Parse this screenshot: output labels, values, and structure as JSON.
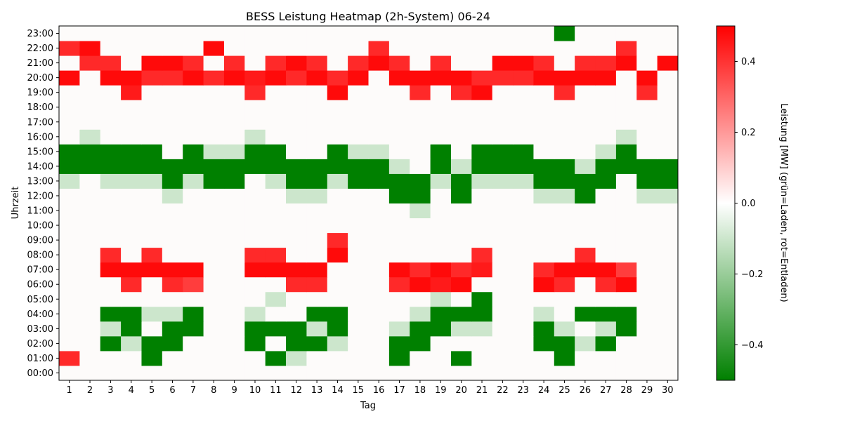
{
  "chart_data": {
    "type": "heatmap",
    "title": "BESS Leistung Heatmap (2h-System) 06-24",
    "xlabel": "Tag",
    "ylabel": "Uhrzeit",
    "x": [
      1,
      2,
      3,
      4,
      5,
      6,
      7,
      8,
      9,
      10,
      11,
      12,
      13,
      14,
      15,
      16,
      17,
      18,
      19,
      20,
      21,
      22,
      23,
      24,
      25,
      26,
      27,
      28,
      29,
      30
    ],
    "y": [
      "00:00",
      "01:00",
      "02:00",
      "03:00",
      "04:00",
      "05:00",
      "06:00",
      "07:00",
      "08:00",
      "09:00",
      "10:00",
      "11:00",
      "12:00",
      "13:00",
      "14:00",
      "15:00",
      "16:00",
      "17:00",
      "18:00",
      "19:00",
      "20:00",
      "21:00",
      "22:00",
      "23:00"
    ],
    "zlim": [
      -0.5,
      0.5
    ],
    "colorbar": {
      "label": "Leistung [MW] (grün=Laden, rot=Entladen)",
      "ticks": [
        -0.4,
        -0.2,
        0.0,
        0.2,
        0.4
      ],
      "tick_labels": [
        "−0.4",
        "−0.2",
        "0.0",
        "0.2",
        "0.4"
      ]
    },
    "colors": {
      "negative": "#008000",
      "zero": "#ffffff",
      "positive": "#ff0000"
    },
    "values": [
      [
        0,
        0,
        0,
        0,
        0,
        0,
        0,
        0,
        0,
        0,
        0,
        0,
        0,
        0,
        0,
        0,
        0,
        0,
        0,
        0,
        0,
        0,
        0,
        0,
        0,
        0,
        0,
        0,
        0,
        0
      ],
      [
        0.42,
        0,
        0,
        0,
        -0.5,
        0,
        0,
        0,
        0,
        0,
        -0.5,
        -0.1,
        0,
        0,
        0,
        0,
        -0.5,
        0,
        0,
        -0.5,
        0,
        0,
        0,
        0,
        -0.5,
        0,
        0,
        0,
        0,
        0
      ],
      [
        0,
        0,
        -0.5,
        -0.1,
        -0.5,
        -0.5,
        0,
        0,
        0,
        -0.5,
        0,
        -0.5,
        -0.5,
        -0.1,
        0,
        0,
        -0.5,
        -0.5,
        0,
        0,
        0,
        0,
        0,
        -0.5,
        -0.5,
        -0.1,
        -0.5,
        0,
        0,
        0
      ],
      [
        0,
        0,
        -0.1,
        -0.5,
        0,
        -0.5,
        -0.5,
        0,
        0,
        -0.5,
        -0.5,
        -0.5,
        -0.1,
        -0.5,
        0,
        0,
        -0.1,
        -0.5,
        -0.5,
        -0.1,
        -0.1,
        0,
        0,
        -0.5,
        -0.1,
        0,
        -0.1,
        -0.5,
        0,
        0
      ],
      [
        0,
        0,
        -0.5,
        -0.5,
        -0.1,
        -0.1,
        -0.5,
        0,
        0,
        -0.1,
        0,
        0,
        -0.5,
        -0.5,
        0,
        0,
        0,
        -0.1,
        -0.5,
        -0.5,
        -0.5,
        0,
        0,
        -0.1,
        0,
        -0.5,
        -0.5,
        -0.5,
        0,
        0
      ],
      [
        0,
        0,
        0,
        0,
        0,
        0,
        0,
        0,
        0,
        0,
        -0.1,
        0,
        0,
        0,
        0,
        0,
        0,
        0,
        -0.1,
        0,
        -0.5,
        0,
        0,
        0,
        0,
        0,
        0,
        0,
        0,
        0
      ],
      [
        0,
        0,
        0,
        0.42,
        0,
        0.42,
        0.38,
        0,
        0,
        0,
        0,
        0.42,
        0.42,
        0,
        0,
        0,
        0.42,
        0.48,
        0.45,
        0.48,
        0,
        0,
        0,
        0.48,
        0.42,
        0,
        0.42,
        0.48,
        0,
        0
      ],
      [
        0,
        0,
        0.48,
        0.48,
        0.48,
        0.48,
        0.48,
        0,
        0,
        0.48,
        0.48,
        0.48,
        0.48,
        0,
        0,
        0,
        0.48,
        0.42,
        0.48,
        0.42,
        0.45,
        0,
        0,
        0.42,
        0.48,
        0.48,
        0.48,
        0.38,
        0,
        0
      ],
      [
        0,
        0,
        0.42,
        0,
        0.42,
        0,
        0,
        0,
        0,
        0.42,
        0.42,
        0,
        0,
        0.48,
        0,
        0,
        0,
        0,
        0,
        0,
        0.42,
        0,
        0,
        0,
        0,
        0.42,
        0,
        0,
        0,
        0
      ],
      [
        0,
        0,
        0,
        0,
        0,
        0,
        0,
        0,
        0,
        0,
        0,
        0,
        0,
        0.42,
        0,
        0,
        0,
        0,
        0,
        0,
        0,
        0,
        0,
        0,
        0,
        0,
        0,
        0,
        0,
        0
      ],
      [
        0,
        0,
        0,
        0,
        0,
        0,
        0,
        0,
        0,
        0,
        0,
        0,
        0,
        0,
        0,
        0,
        0,
        0,
        0,
        0,
        0,
        0,
        0,
        0,
        0,
        0,
        0,
        0,
        0,
        0
      ],
      [
        0,
        0,
        0,
        0,
        0,
        0,
        0,
        0,
        0,
        0,
        0,
        0,
        0,
        0,
        0,
        0,
        0,
        -0.1,
        0,
        0,
        0,
        0,
        0,
        0,
        0,
        0,
        0,
        0,
        0,
        0
      ],
      [
        0,
        0,
        0,
        0,
        0,
        -0.1,
        0,
        0,
        0,
        0,
        0,
        -0.1,
        -0.1,
        0,
        0,
        0,
        -0.5,
        -0.5,
        0,
        -0.5,
        0,
        0,
        0,
        -0.1,
        -0.1,
        -0.5,
        0,
        0,
        -0.1,
        -0.1
      ],
      [
        -0.1,
        0,
        -0.1,
        -0.1,
        -0.1,
        -0.5,
        -0.1,
        -0.5,
        -0.5,
        0,
        -0.1,
        -0.5,
        -0.5,
        -0.1,
        -0.5,
        -0.5,
        -0.5,
        -0.5,
        -0.1,
        -0.5,
        -0.1,
        -0.1,
        -0.1,
        -0.5,
        -0.5,
        -0.5,
        -0.5,
        0,
        -0.5,
        -0.5
      ],
      [
        -0.5,
        -0.5,
        -0.5,
        -0.5,
        -0.5,
        -0.5,
        -0.5,
        -0.5,
        -0.5,
        -0.5,
        -0.5,
        -0.5,
        -0.5,
        -0.5,
        -0.5,
        -0.5,
        -0.1,
        0,
        -0.5,
        -0.1,
        -0.5,
        -0.5,
        -0.5,
        -0.5,
        -0.5,
        -0.1,
        -0.5,
        -0.5,
        -0.5,
        -0.5
      ],
      [
        -0.5,
        -0.5,
        -0.5,
        -0.5,
        -0.5,
        0,
        -0.5,
        -0.1,
        -0.1,
        -0.5,
        -0.5,
        0,
        0,
        -0.5,
        -0.1,
        -0.1,
        0,
        0,
        -0.5,
        0,
        -0.5,
        -0.5,
        -0.5,
        0,
        0,
        0,
        -0.1,
        -0.5,
        0,
        0
      ],
      [
        0,
        -0.1,
        0,
        0,
        0,
        0,
        0,
        0,
        0,
        -0.1,
        0,
        0,
        0,
        0,
        0,
        0,
        0,
        0,
        0,
        0,
        0,
        0,
        0,
        0,
        0,
        0,
        0,
        -0.1,
        0,
        0
      ],
      [
        0,
        0,
        0,
        0,
        0,
        0,
        0,
        0,
        0,
        0,
        0,
        0,
        0,
        0,
        0,
        0,
        0,
        0,
        0,
        0,
        0,
        0,
        0,
        0,
        0,
        0,
        0,
        0,
        0,
        0
      ],
      [
        0,
        0,
        0,
        0,
        0,
        0,
        0,
        0,
        0,
        0,
        0,
        0,
        0,
        0,
        0,
        0,
        0,
        0,
        0,
        0,
        0,
        0,
        0,
        0,
        0,
        0,
        0,
        0,
        0,
        0
      ],
      [
        0,
        0,
        0,
        0.45,
        0,
        0,
        0,
        0,
        0,
        0.42,
        0,
        0,
        0,
        0.48,
        0,
        0,
        0,
        0.42,
        0,
        0.42,
        0.48,
        0,
        0,
        0,
        0.42,
        0,
        0,
        0,
        0.42,
        0
      ],
      [
        0.48,
        0,
        0.48,
        0.48,
        0.42,
        0.42,
        0.48,
        0.42,
        0.48,
        0.45,
        0.48,
        0.42,
        0.48,
        0.42,
        0.48,
        0,
        0.48,
        0.48,
        0.48,
        0.48,
        0.42,
        0.42,
        0.42,
        0.48,
        0.48,
        0.48,
        0.48,
        0,
        0.48,
        0
      ],
      [
        0,
        0.42,
        0.42,
        0,
        0.48,
        0.48,
        0.42,
        0,
        0.42,
        0,
        0.42,
        0.48,
        0.42,
        0,
        0.42,
        0.48,
        0.42,
        0,
        0.42,
        0,
        0,
        0.48,
        0.48,
        0.42,
        0,
        0.42,
        0.42,
        0.48,
        0,
        0.48
      ],
      [
        0.42,
        0.48,
        0,
        0,
        0,
        0,
        0,
        0.48,
        0,
        0,
        0,
        0,
        0,
        0,
        0,
        0.42,
        0,
        0,
        0,
        0,
        0,
        0,
        0,
        0,
        0,
        0,
        0,
        0.42,
        0,
        0
      ],
      [
        0,
        0,
        0,
        0,
        0,
        0,
        0,
        0,
        0,
        0,
        0,
        0,
        0,
        0,
        0,
        0,
        0,
        0,
        0,
        0,
        0,
        0,
        0,
        0,
        -0.5,
        0,
        0,
        0,
        0,
        0
      ]
    ]
  }
}
